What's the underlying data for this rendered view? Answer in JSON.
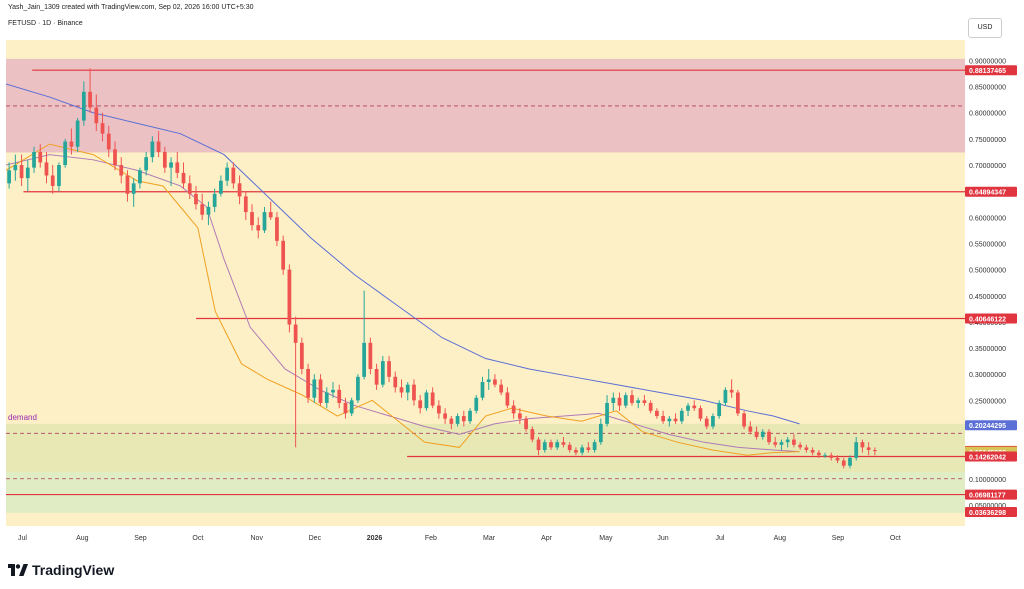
{
  "header": {
    "credit": "Yash_Jain_1309 created with TradingView.com, Sep 02, 2026 16:00 UTC+5:30",
    "symbol": "FETUSD · 1D · Binance",
    "currency": "USD"
  },
  "footer": {
    "brand": "TradingView"
  },
  "colors": {
    "background": "#fdf0c6",
    "bull": "#26a69a",
    "bear": "#ef5350",
    "level": "#e0343f",
    "ma_blue": "#5b6fd6",
    "ma_purple": "#b07ab6",
    "ma_orange": "#f0a020"
  },
  "chart_data": {
    "type": "candlestick",
    "y_scale": "linear",
    "ylim": [
      0.025,
      0.92
    ],
    "x_ticks": [
      "Jul",
      "Aug",
      "Sep",
      "Oct",
      "Nov",
      "Dec",
      "2026",
      "Feb",
      "Mar",
      "Apr",
      "May",
      "Jun",
      "Jul",
      "Aug",
      "Sep",
      "Oct"
    ],
    "y_ticks": [
      "0.90000000",
      "0.85000000",
      "0.80000000",
      "0.75000000",
      "0.70000000",
      "0.65000000",
      "0.60000000",
      "0.55000000",
      "0.50000000",
      "0.45000000",
      "0.40000000",
      "0.35000000",
      "0.30000000",
      "0.25000000",
      "0.20000000",
      "0.15000000",
      "0.10000000",
      "0.05000000"
    ],
    "price_labels": [
      {
        "text": "0.88137465",
        "value": 0.88137465,
        "color": "#e0343f"
      },
      {
        "text": "0.64894347",
        "value": 0.64894347,
        "color": "#e0343f"
      },
      {
        "text": "0.40646122",
        "value": 0.40646122,
        "color": "#e0343f"
      },
      {
        "text": "0.20244295",
        "value": 0.20244295,
        "color": "#5b6fd6"
      },
      {
        "text": "0.15338287",
        "value": 0.15338287,
        "color": "#d64545"
      },
      {
        "text": "0.15177274",
        "value": 0.15177274,
        "color": "#f0a020"
      },
      {
        "text": "0.15145336",
        "value": 0.15145336,
        "color": "#d8c55a"
      },
      {
        "text": "0.14262042",
        "value": 0.14262042,
        "color": "#e0343f"
      },
      {
        "text": "0.06981177",
        "value": 0.06981177,
        "color": "#e0343f"
      },
      {
        "text": "0.03636298",
        "value": 0.03636298,
        "color": "#e0343f"
      }
    ],
    "zones": [
      {
        "name": "supply",
        "from": 0.724,
        "to": 0.903,
        "color": "#e9b9c3"
      },
      {
        "name": "demand",
        "label": "demand",
        "from": 0.113,
        "to": 0.205,
        "color": "#e4e6b2"
      },
      {
        "name": "demand-lower",
        "from": 0.035,
        "to": 0.113,
        "color": "#d9ebc3"
      }
    ],
    "levels": [
      {
        "value": 0.88137465,
        "style": "solid",
        "from": 0.03
      },
      {
        "value": 0.813,
        "style": "dashed",
        "from": 0.0
      },
      {
        "value": 0.64894347,
        "style": "solid",
        "from": 0.02
      },
      {
        "value": 0.40646122,
        "style": "solid",
        "from": 0.218
      },
      {
        "value": 0.14262042,
        "style": "solid",
        "from": 0.46
      },
      {
        "value": 0.187,
        "style": "dashed",
        "from": 0.0
      },
      {
        "value": 0.1,
        "style": "dashed",
        "from": 0.0
      },
      {
        "value": 0.06981177,
        "style": "solid",
        "from": 0.0
      }
    ],
    "ohlc": [
      [
        0.665,
        0.705,
        0.655,
        0.69
      ],
      [
        0.69,
        0.72,
        0.67,
        0.7
      ],
      [
        0.7,
        0.72,
        0.66,
        0.675
      ],
      [
        0.675,
        0.71,
        0.65,
        0.695
      ],
      [
        0.695,
        0.735,
        0.685,
        0.725
      ],
      [
        0.725,
        0.74,
        0.695,
        0.705
      ],
      [
        0.705,
        0.725,
        0.665,
        0.68
      ],
      [
        0.68,
        0.7,
        0.645,
        0.66
      ],
      [
        0.66,
        0.705,
        0.65,
        0.7
      ],
      [
        0.7,
        0.75,
        0.695,
        0.745
      ],
      [
        0.745,
        0.77,
        0.72,
        0.735
      ],
      [
        0.735,
        0.79,
        0.725,
        0.785
      ],
      [
        0.785,
        0.86,
        0.775,
        0.84
      ],
      [
        0.84,
        0.885,
        0.8,
        0.81
      ],
      [
        0.81,
        0.835,
        0.765,
        0.78
      ],
      [
        0.78,
        0.8,
        0.745,
        0.76
      ],
      [
        0.76,
        0.775,
        0.715,
        0.73
      ],
      [
        0.73,
        0.745,
        0.69,
        0.7
      ],
      [
        0.7,
        0.715,
        0.665,
        0.68
      ],
      [
        0.68,
        0.69,
        0.63,
        0.645
      ],
      [
        0.645,
        0.675,
        0.62,
        0.665
      ],
      [
        0.665,
        0.695,
        0.655,
        0.69
      ],
      [
        0.69,
        0.725,
        0.68,
        0.715
      ],
      [
        0.715,
        0.755,
        0.705,
        0.745
      ],
      [
        0.745,
        0.765,
        0.715,
        0.725
      ],
      [
        0.725,
        0.735,
        0.685,
        0.695
      ],
      [
        0.695,
        0.715,
        0.66,
        0.705
      ],
      [
        0.705,
        0.725,
        0.675,
        0.685
      ],
      [
        0.685,
        0.705,
        0.655,
        0.665
      ],
      [
        0.665,
        0.68,
        0.635,
        0.645
      ],
      [
        0.645,
        0.66,
        0.615,
        0.625
      ],
      [
        0.625,
        0.645,
        0.595,
        0.605
      ],
      [
        0.605,
        0.63,
        0.585,
        0.62
      ],
      [
        0.62,
        0.655,
        0.61,
        0.645
      ],
      [
        0.645,
        0.68,
        0.64,
        0.67
      ],
      [
        0.67,
        0.705,
        0.66,
        0.695
      ],
      [
        0.695,
        0.705,
        0.655,
        0.665
      ],
      [
        0.665,
        0.68,
        0.625,
        0.64
      ],
      [
        0.64,
        0.65,
        0.595,
        0.61
      ],
      [
        0.61,
        0.625,
        0.575,
        0.585
      ],
      [
        0.585,
        0.6,
        0.56,
        0.575
      ],
      [
        0.575,
        0.62,
        0.57,
        0.61
      ],
      [
        0.61,
        0.63,
        0.595,
        0.6
      ],
      [
        0.6,
        0.61,
        0.545,
        0.555
      ],
      [
        0.555,
        0.565,
        0.49,
        0.5
      ],
      [
        0.5,
        0.51,
        0.38,
        0.395
      ],
      [
        0.395,
        0.41,
        0.16,
        0.36
      ],
      [
        0.36,
        0.37,
        0.3,
        0.31
      ],
      [
        0.31,
        0.32,
        0.245,
        0.255
      ],
      [
        0.255,
        0.3,
        0.245,
        0.29
      ],
      [
        0.29,
        0.3,
        0.24,
        0.245
      ],
      [
        0.245,
        0.275,
        0.235,
        0.265
      ],
      [
        0.265,
        0.285,
        0.255,
        0.27
      ],
      [
        0.27,
        0.28,
        0.235,
        0.245
      ],
      [
        0.245,
        0.255,
        0.215,
        0.225
      ],
      [
        0.225,
        0.255,
        0.22,
        0.25
      ],
      [
        0.25,
        0.3,
        0.245,
        0.295
      ],
      [
        0.295,
        0.46,
        0.29,
        0.36
      ],
      [
        0.36,
        0.37,
        0.3,
        0.31
      ],
      [
        0.31,
        0.32,
        0.27,
        0.28
      ],
      [
        0.28,
        0.335,
        0.275,
        0.325
      ],
      [
        0.325,
        0.335,
        0.285,
        0.295
      ],
      [
        0.295,
        0.305,
        0.265,
        0.275
      ],
      [
        0.275,
        0.29,
        0.255,
        0.265
      ],
      [
        0.265,
        0.285,
        0.25,
        0.28
      ],
      [
        0.28,
        0.29,
        0.24,
        0.25
      ],
      [
        0.25,
        0.26,
        0.225,
        0.235
      ],
      [
        0.235,
        0.27,
        0.23,
        0.265
      ],
      [
        0.265,
        0.275,
        0.235,
        0.24
      ],
      [
        0.24,
        0.25,
        0.215,
        0.225
      ],
      [
        0.225,
        0.235,
        0.205,
        0.215
      ],
      [
        0.215,
        0.22,
        0.195,
        0.205
      ],
      [
        0.205,
        0.225,
        0.2,
        0.22
      ],
      [
        0.22,
        0.23,
        0.2,
        0.21
      ],
      [
        0.21,
        0.235,
        0.205,
        0.23
      ],
      [
        0.23,
        0.26,
        0.225,
        0.255
      ],
      [
        0.255,
        0.295,
        0.25,
        0.285
      ],
      [
        0.285,
        0.31,
        0.27,
        0.29
      ],
      [
        0.29,
        0.3,
        0.275,
        0.28
      ],
      [
        0.28,
        0.29,
        0.26,
        0.265
      ],
      [
        0.265,
        0.275,
        0.235,
        0.24
      ],
      [
        0.24,
        0.25,
        0.215,
        0.225
      ],
      [
        0.225,
        0.235,
        0.205,
        0.215
      ],
      [
        0.215,
        0.22,
        0.19,
        0.195
      ],
      [
        0.195,
        0.2,
        0.17,
        0.175
      ],
      [
        0.175,
        0.18,
        0.145,
        0.155
      ],
      [
        0.155,
        0.175,
        0.15,
        0.17
      ],
      [
        0.17,
        0.175,
        0.155,
        0.16
      ],
      [
        0.16,
        0.175,
        0.155,
        0.17
      ],
      [
        0.17,
        0.18,
        0.16,
        0.165
      ],
      [
        0.165,
        0.17,
        0.15,
        0.155
      ],
      [
        0.155,
        0.16,
        0.145,
        0.15
      ],
      [
        0.15,
        0.165,
        0.145,
        0.16
      ],
      [
        0.16,
        0.17,
        0.15,
        0.155
      ],
      [
        0.155,
        0.175,
        0.15,
        0.17
      ],
      [
        0.17,
        0.215,
        0.165,
        0.205
      ],
      [
        0.205,
        0.26,
        0.2,
        0.245
      ],
      [
        0.245,
        0.265,
        0.23,
        0.255
      ],
      [
        0.255,
        0.265,
        0.23,
        0.24
      ],
      [
        0.24,
        0.265,
        0.235,
        0.26
      ],
      [
        0.26,
        0.27,
        0.24,
        0.245
      ],
      [
        0.245,
        0.255,
        0.235,
        0.25
      ],
      [
        0.25,
        0.26,
        0.24,
        0.245
      ],
      [
        0.245,
        0.25,
        0.225,
        0.23
      ],
      [
        0.23,
        0.235,
        0.215,
        0.22
      ],
      [
        0.22,
        0.23,
        0.205,
        0.21
      ],
      [
        0.21,
        0.22,
        0.2,
        0.215
      ],
      [
        0.215,
        0.225,
        0.205,
        0.21
      ],
      [
        0.21,
        0.235,
        0.205,
        0.23
      ],
      [
        0.23,
        0.245,
        0.22,
        0.24
      ],
      [
        0.24,
        0.25,
        0.23,
        0.235
      ],
      [
        0.235,
        0.24,
        0.21,
        0.215
      ],
      [
        0.215,
        0.22,
        0.195,
        0.2
      ],
      [
        0.2,
        0.225,
        0.195,
        0.22
      ],
      [
        0.22,
        0.25,
        0.215,
        0.245
      ],
      [
        0.245,
        0.275,
        0.24,
        0.27
      ],
      [
        0.27,
        0.29,
        0.255,
        0.265
      ],
      [
        0.265,
        0.27,
        0.22,
        0.225
      ],
      [
        0.225,
        0.23,
        0.195,
        0.2
      ],
      [
        0.2,
        0.21,
        0.185,
        0.19
      ],
      [
        0.19,
        0.2,
        0.175,
        0.18
      ],
      [
        0.18,
        0.195,
        0.175,
        0.19
      ],
      [
        0.19,
        0.195,
        0.165,
        0.17
      ],
      [
        0.17,
        0.18,
        0.16,
        0.165
      ],
      [
        0.165,
        0.175,
        0.155,
        0.17
      ],
      [
        0.17,
        0.18,
        0.16,
        0.175
      ],
      [
        0.175,
        0.185,
        0.16,
        0.165
      ],
      [
        0.165,
        0.17,
        0.155,
        0.16
      ],
      [
        0.16,
        0.165,
        0.15,
        0.155
      ],
      [
        0.155,
        0.16,
        0.145,
        0.15
      ],
      [
        0.15,
        0.155,
        0.14,
        0.145
      ],
      [
        0.145,
        0.15,
        0.14,
        0.145
      ],
      [
        0.145,
        0.15,
        0.135,
        0.14
      ],
      [
        0.14,
        0.145,
        0.13,
        0.135
      ],
      [
        0.135,
        0.14,
        0.12,
        0.125
      ],
      [
        0.125,
        0.145,
        0.12,
        0.14
      ],
      [
        0.14,
        0.18,
        0.135,
        0.17
      ],
      [
        0.17,
        0.175,
        0.15,
        0.16
      ],
      [
        0.16,
        0.17,
        0.145,
        0.155
      ],
      [
        0.155,
        0.16,
        0.145,
        0.153
      ]
    ],
    "ma_blue": [
      [
        0,
        0.855
      ],
      [
        0.05,
        0.83
      ],
      [
        0.1,
        0.8
      ],
      [
        0.15,
        0.78
      ],
      [
        0.2,
        0.76
      ],
      [
        0.25,
        0.72
      ],
      [
        0.3,
        0.64
      ],
      [
        0.35,
        0.56
      ],
      [
        0.4,
        0.49
      ],
      [
        0.45,
        0.43
      ],
      [
        0.5,
        0.37
      ],
      [
        0.55,
        0.33
      ],
      [
        0.6,
        0.31
      ],
      [
        0.65,
        0.295
      ],
      [
        0.7,
        0.28
      ],
      [
        0.75,
        0.265
      ],
      [
        0.8,
        0.25
      ],
      [
        0.85,
        0.23
      ],
      [
        0.88,
        0.22
      ],
      [
        0.91,
        0.205
      ]
    ],
    "ma_purple": [
      [
        0,
        0.7
      ],
      [
        0.05,
        0.72
      ],
      [
        0.1,
        0.71
      ],
      [
        0.15,
        0.69
      ],
      [
        0.2,
        0.66
      ],
      [
        0.23,
        0.62
      ],
      [
        0.25,
        0.52
      ],
      [
        0.28,
        0.39
      ],
      [
        0.32,
        0.31
      ],
      [
        0.36,
        0.27
      ],
      [
        0.4,
        0.24
      ],
      [
        0.44,
        0.22
      ],
      [
        0.48,
        0.2
      ],
      [
        0.52,
        0.185
      ],
      [
        0.56,
        0.205
      ],
      [
        0.6,
        0.215
      ],
      [
        0.64,
        0.22
      ],
      [
        0.68,
        0.225
      ],
      [
        0.72,
        0.205
      ],
      [
        0.76,
        0.185
      ],
      [
        0.8,
        0.17
      ],
      [
        0.84,
        0.16
      ],
      [
        0.88,
        0.155
      ],
      [
        0.91,
        0.152
      ]
    ],
    "ma_orange": [
      [
        0,
        0.69
      ],
      [
        0.05,
        0.74
      ],
      [
        0.1,
        0.72
      ],
      [
        0.15,
        0.67
      ],
      [
        0.18,
        0.66
      ],
      [
        0.2,
        0.62
      ],
      [
        0.22,
        0.58
      ],
      [
        0.24,
        0.42
      ],
      [
        0.27,
        0.32
      ],
      [
        0.3,
        0.29
      ],
      [
        0.34,
        0.26
      ],
      [
        0.38,
        0.22
      ],
      [
        0.42,
        0.25
      ],
      [
        0.45,
        0.21
      ],
      [
        0.48,
        0.17
      ],
      [
        0.52,
        0.16
      ],
      [
        0.55,
        0.22
      ],
      [
        0.58,
        0.235
      ],
      [
        0.62,
        0.22
      ],
      [
        0.66,
        0.21
      ],
      [
        0.7,
        0.23
      ],
      [
        0.73,
        0.19
      ],
      [
        0.77,
        0.17
      ],
      [
        0.81,
        0.155
      ],
      [
        0.85,
        0.145
      ],
      [
        0.88,
        0.15
      ],
      [
        0.91,
        0.152
      ]
    ]
  }
}
